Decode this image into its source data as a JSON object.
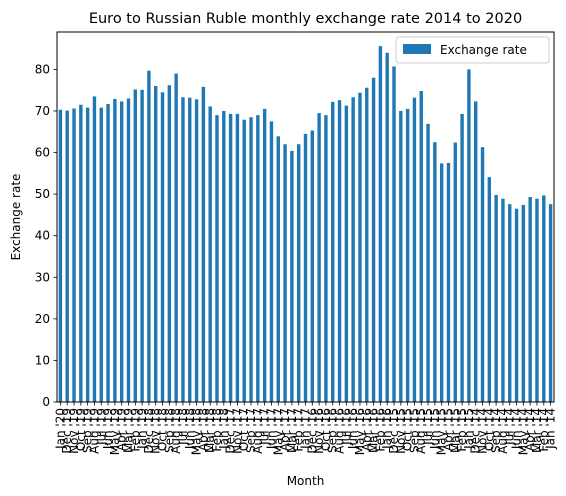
{
  "chart_data": {
    "type": "bar",
    "title": "Euro to Russian Ruble monthly exchange rate 2014 to 2020",
    "xlabel": "Month",
    "ylabel": "Exchange rate",
    "ylim": [
      0,
      89
    ],
    "yticks": [
      0,
      10,
      20,
      30,
      40,
      50,
      60,
      70,
      80
    ],
    "grid": false,
    "legend_position": "top-right",
    "bar_color": "#1f77b4",
    "categories": [
      "Jan '20",
      "Dec '19",
      "Nov '19",
      "Oct '19",
      "Sep '19",
      "Aug '19",
      "Jul '19",
      "Jun '19",
      "May '19",
      "Apr '19",
      "Mar '19",
      "Feb '19",
      "Jan '19",
      "Dec '18",
      "Nov '18",
      "Oct '18",
      "Sep '18",
      "Aug '18",
      "Jul '18",
      "Jun '18",
      "May '18",
      "Apr '18",
      "Mar '18",
      "Feb '18",
      "Jan '18",
      "Dec '17",
      "Nov '17",
      "Oct '17",
      "Sep '17",
      "Aug '17",
      "Jul '17",
      "Jun '17",
      "May '17",
      "Apr '17",
      "Mar '17",
      "Feb '17",
      "Jan '17",
      "Dec '16",
      "Nov '16",
      "Oct '16",
      "Sep '16",
      "Aug '16",
      "Jul '16",
      "Jun '16",
      "May '16",
      "Apr '16",
      "Mar '16",
      "Feb '16",
      "Jan '16",
      "Dec '15",
      "Nov '15",
      "Oct '15",
      "Sep '15",
      "Aug '15",
      "Jul '15",
      "Jun '15",
      "May '15",
      "Apr '15",
      "Mar '15",
      "Feb '15",
      "Jan '15",
      "Dec '14",
      "Nov '14",
      "Oct '14",
      "Sep '14",
      "Aug '14",
      "Jul '14",
      "Jun '14",
      "May '14",
      "Apr '14",
      "Mar '14",
      "Feb '14",
      "Jan '14"
    ],
    "series": [
      {
        "name": "Exchange rate",
        "values": [
          70.3,
          70.1,
          70.6,
          71.5,
          70.8,
          73.5,
          70.8,
          71.7,
          72.9,
          72.3,
          73.0,
          75.2,
          75.1,
          79.7,
          76.0,
          74.5,
          76.2,
          79.0,
          73.3,
          73.2,
          72.8,
          75.8,
          71.1,
          69.0,
          70.0,
          69.3,
          69.3,
          67.9,
          68.5,
          69.0,
          70.5,
          67.5,
          63.9,
          62.0,
          60.4,
          62.0,
          64.5,
          65.3,
          69.5,
          69.0,
          72.2,
          72.6,
          71.3,
          73.3,
          74.4,
          75.6,
          78.0,
          85.6,
          84.0,
          80.7,
          70.0,
          70.5,
          73.2,
          74.8,
          66.9,
          62.5,
          57.4,
          57.5,
          62.4,
          69.3,
          80.0,
          72.3,
          61.3,
          54.1,
          49.8,
          48.9,
          47.6,
          46.5,
          47.4,
          49.3,
          48.9,
          49.7,
          47.6
        ]
      }
    ]
  }
}
